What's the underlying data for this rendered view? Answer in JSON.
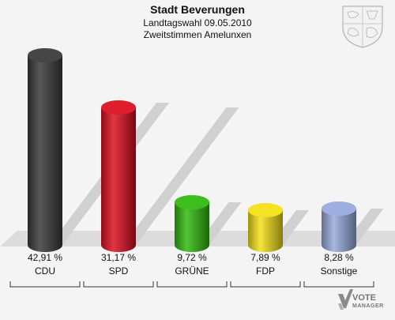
{
  "header": {
    "title": "Stadt Beverungen",
    "subtitle1": "Landtagswahl 09.05.2010",
    "subtitle2": "Zweitstimmen Amelunxen"
  },
  "branding": {
    "logo_line1": "VOTE",
    "logo_line2": "MANAGER"
  },
  "chart_data": {
    "type": "bar",
    "title": "Stadt Beverungen",
    "subtitle": "Landtagswahl 09.05.2010 / Zweitstimmen Amelunxen",
    "categories": [
      "CDU",
      "SPD",
      "GRÜNE",
      "FDP",
      "Sonstige"
    ],
    "values": [
      42.91,
      31.17,
      9.72,
      7.89,
      8.28
    ],
    "value_labels": [
      "42,91 %",
      "31,17 %",
      "9,72 %",
      "7,89 %",
      "8,28 %"
    ],
    "colors": [
      "#3c3c3c",
      "#dd1122",
      "#33bb11",
      "#f5e01a",
      "#99aadd"
    ],
    "unit": "%",
    "grid": false,
    "legend": "none"
  }
}
